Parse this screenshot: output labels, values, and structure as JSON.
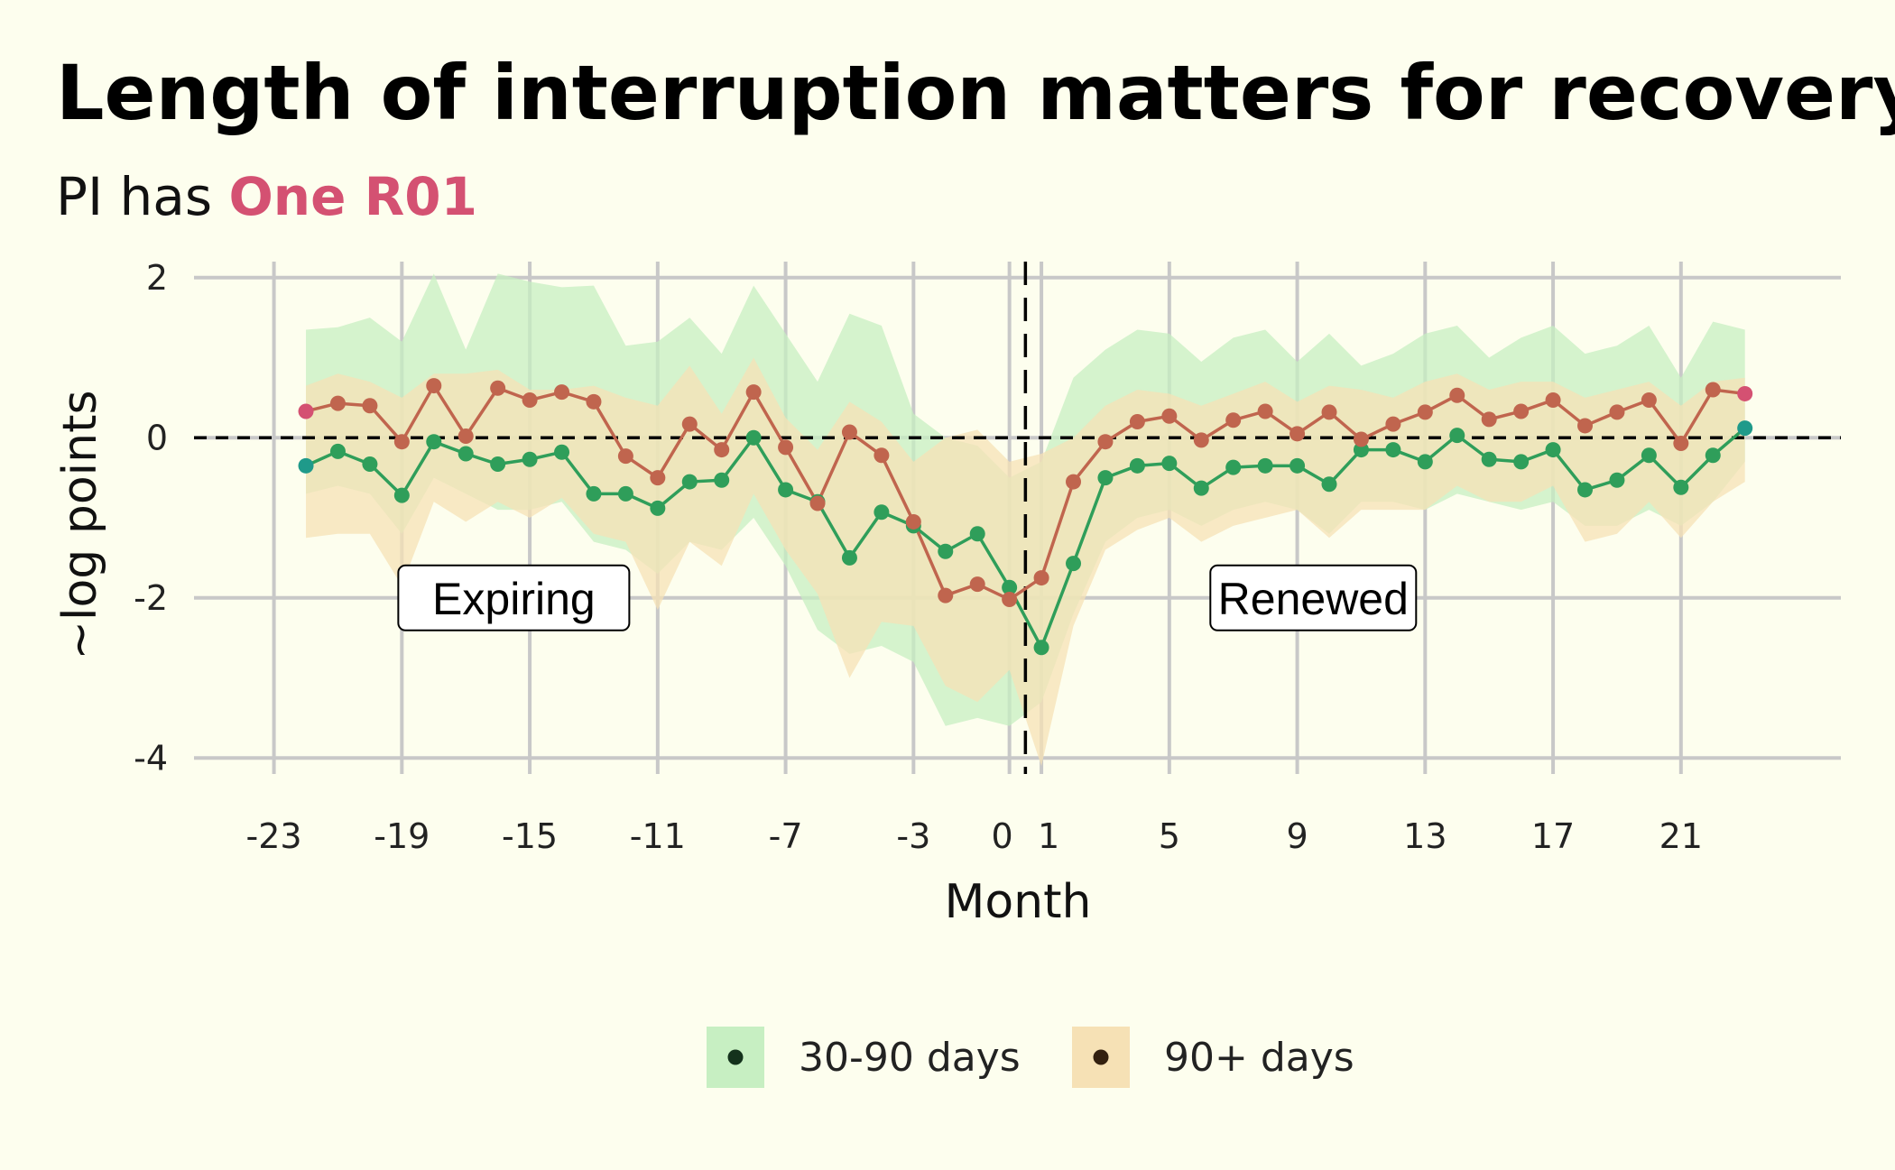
{
  "chart_data": {
    "type": "line",
    "title": "Length of interruption matters for recovery",
    "subtitle_prefix": "PI has ",
    "subtitle_highlight": "One R01",
    "subtitle_highlight_color": "#d45172",
    "xlabel": "Month",
    "ylabel": "~log points",
    "xlim": [
      -25.5,
      26
    ],
    "ylim": [
      -4.2,
      2.2
    ],
    "x_ticks": [
      -23,
      -19,
      -15,
      -11,
      -7,
      -3,
      0,
      1,
      5,
      9,
      13,
      17,
      21
    ],
    "x_tick_labels": [
      "-23",
      "-19",
      "-15",
      "-11",
      "-7",
      "-3",
      "0",
      "1",
      "5",
      "9",
      "13",
      "17",
      "21"
    ],
    "y_ticks": [
      -4,
      -2,
      0,
      2
    ],
    "y_tick_labels": [
      "-4",
      "-2",
      "0",
      "2"
    ],
    "grid": true,
    "reference_lines": {
      "y": 0,
      "x": 0.5
    },
    "annotations": [
      {
        "text": "Expiring",
        "x": -15.5,
        "y": -2
      },
      {
        "text": "Renewed",
        "x": 9.5,
        "y": -2
      }
    ],
    "legend_position": "bottom",
    "x": [
      -22,
      -21,
      -20,
      -19,
      -18,
      -17,
      -16,
      -15,
      -14,
      -13,
      -12,
      -11,
      -10,
      -9,
      -8,
      -7,
      -6,
      -5,
      -4,
      -3,
      -2,
      -1,
      0,
      1,
      2,
      3,
      4,
      5,
      6,
      7,
      8,
      9,
      10,
      11,
      12,
      13,
      14,
      15,
      16,
      17,
      18,
      19,
      20,
      21,
      22,
      23
    ],
    "series": [
      {
        "name": "30-90 days",
        "color": "#2f9e5a",
        "band_color": "#c7efc2",
        "values": [
          -0.35,
          -0.17,
          -0.33,
          -0.72,
          -0.05,
          -0.2,
          -0.33,
          -0.27,
          -0.18,
          -0.7,
          -0.7,
          -0.88,
          -0.55,
          -0.53,
          0.0,
          -0.65,
          -0.8,
          -1.5,
          -0.93,
          -1.1,
          -1.42,
          -1.2,
          -1.87,
          -2.62,
          -1.57,
          -0.5,
          -0.35,
          -0.32,
          -0.63,
          -0.37,
          -0.35,
          -0.35,
          -0.58,
          -0.15,
          -0.15,
          -0.3,
          0.03,
          -0.27,
          -0.3,
          -0.15,
          -0.65,
          -0.53,
          -0.22,
          -0.62,
          -0.22,
          0.12
        ],
        "lower": [
          -0.7,
          -0.6,
          -0.7,
          -1.2,
          -0.5,
          -0.7,
          -0.9,
          -0.9,
          -0.8,
          -1.3,
          -1.4,
          -1.7,
          -1.3,
          -1.4,
          -1.0,
          -1.6,
          -2.4,
          -2.7,
          -2.6,
          -2.8,
          -3.6,
          -3.5,
          -3.6,
          -3.3,
          -2.2,
          -1.3,
          -1.0,
          -0.9,
          -1.1,
          -0.9,
          -0.8,
          -0.9,
          -1.2,
          -0.8,
          -0.8,
          -0.9,
          -0.7,
          -0.8,
          -0.9,
          -0.8,
          -1.1,
          -1.1,
          -0.9,
          -1.1,
          -0.8,
          -0.3
        ],
        "upper": [
          1.35,
          1.38,
          1.5,
          1.2,
          2.05,
          1.1,
          2.05,
          1.95,
          1.88,
          1.9,
          1.15,
          1.2,
          1.5,
          1.05,
          1.9,
          1.3,
          0.7,
          1.55,
          1.4,
          0.3,
          0.0,
          -0.1,
          -0.5,
          -0.3,
          0.75,
          1.1,
          1.35,
          1.3,
          0.95,
          1.25,
          1.35,
          0.95,
          1.3,
          0.9,
          1.05,
          1.3,
          1.4,
          1.0,
          1.25,
          1.4,
          1.05,
          1.15,
          1.4,
          0.75,
          1.45,
          1.35
        ]
      },
      {
        "name": "90+ days",
        "color": "#c0654e",
        "band_color": "#f6e1b5",
        "values": [
          0.33,
          0.43,
          0.4,
          -0.05,
          0.65,
          0.02,
          0.62,
          0.47,
          0.57,
          0.45,
          -0.23,
          -0.5,
          0.17,
          -0.15,
          0.57,
          -0.12,
          -0.82,
          0.07,
          -0.22,
          -1.05,
          -1.97,
          -1.83,
          -2.02,
          -1.75,
          -0.55,
          -0.05,
          0.2,
          0.27,
          -0.03,
          0.22,
          0.33,
          0.05,
          0.32,
          -0.02,
          0.17,
          0.32,
          0.53,
          0.23,
          0.33,
          0.47,
          0.15,
          0.32,
          0.47,
          -0.07,
          0.6,
          0.55
        ],
        "lower": [
          -1.25,
          -1.2,
          -1.2,
          -1.85,
          -0.8,
          -1.05,
          -0.8,
          -1.0,
          -0.75,
          -1.2,
          -1.3,
          -2.15,
          -1.3,
          -1.6,
          -0.7,
          -1.4,
          -1.95,
          -3.0,
          -2.3,
          -2.35,
          -3.1,
          -3.3,
          -2.9,
          -4.1,
          -2.35,
          -1.4,
          -1.15,
          -1.0,
          -1.3,
          -1.1,
          -1.0,
          -0.9,
          -1.25,
          -0.9,
          -0.9,
          -0.9,
          -0.6,
          -0.8,
          -0.8,
          -0.6,
          -1.3,
          -1.2,
          -0.8,
          -1.25,
          -0.8,
          -0.55
        ],
        "upper": [
          0.65,
          0.8,
          0.7,
          0.5,
          0.8,
          0.8,
          0.85,
          0.6,
          0.6,
          0.65,
          0.5,
          0.4,
          0.9,
          0.3,
          1.0,
          0.25,
          -0.15,
          0.45,
          0.2,
          -0.3,
          0.0,
          0.1,
          -0.3,
          -0.2,
          0.0,
          0.4,
          0.6,
          0.55,
          0.4,
          0.55,
          0.7,
          0.45,
          0.65,
          0.6,
          0.5,
          0.7,
          0.8,
          0.6,
          0.7,
          0.7,
          0.5,
          0.6,
          0.7,
          0.4,
          0.7,
          0.75
        ]
      }
    ],
    "endpoint_colors": {
      "first": "#1f9a8a",
      "last": "#d45172"
    }
  }
}
